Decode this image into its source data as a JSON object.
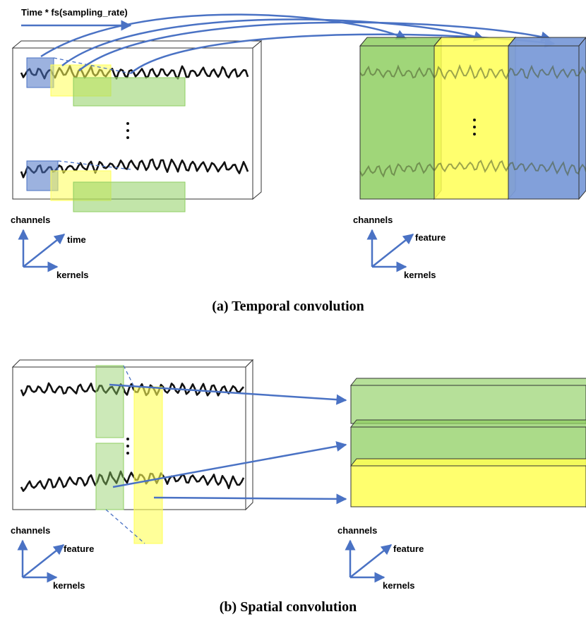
{
  "panel_a": {
    "annotation": "Time * fs(sampling_rate)",
    "input_axes": {
      "up": "channels",
      "diagonal": "time",
      "right": "kernels"
    },
    "output_axes": {
      "up": "channels",
      "diagonal": "feature",
      "right": "kernels"
    },
    "caption": "(a) Temporal convolution"
  },
  "panel_b": {
    "input_axes": {
      "up": "channels",
      "diagonal": "feature",
      "right": "kernels"
    },
    "output_axes": {
      "up": "channels",
      "diagonal": "feature",
      "right": "kernels"
    },
    "caption": "(b) Spatial convolution"
  }
}
